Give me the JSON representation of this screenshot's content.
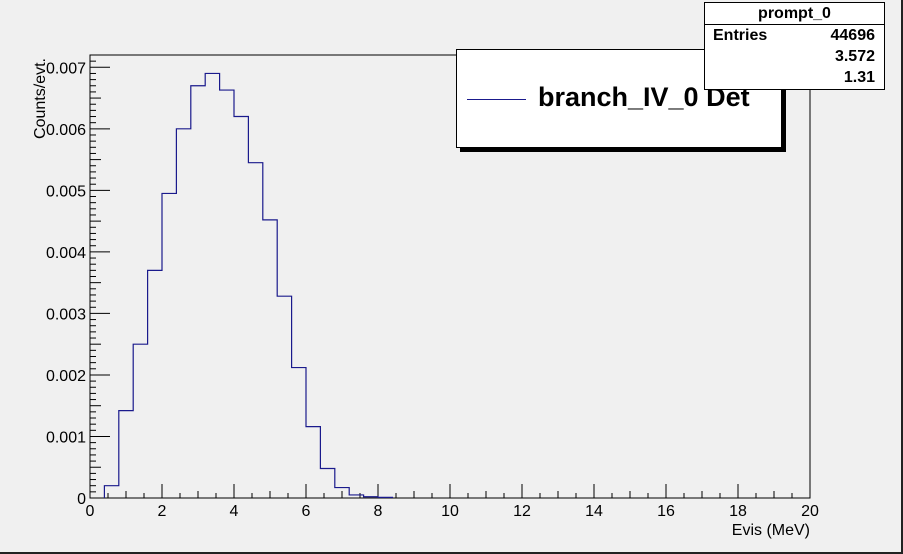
{
  "chart_data": {
    "type": "bar",
    "style": "step-histogram",
    "xlabel": "Evis (MeV)",
    "ylabel": "Counts/evt.",
    "xlim": [
      0,
      20
    ],
    "ylim": [
      0,
      0.0072
    ],
    "x_ticks": [
      "0",
      "2",
      "4",
      "6",
      "8",
      "10",
      "12",
      "14",
      "16",
      "18",
      "20"
    ],
    "y_ticks": [
      "0",
      "0.001",
      "0.002",
      "0.003",
      "0.004",
      "0.005",
      "0.006",
      "0.007"
    ],
    "bin_width": 0.4,
    "x": [
      0.4,
      0.8,
      1.2,
      1.6,
      2.0,
      2.4,
      2.8,
      3.2,
      3.6,
      4.0,
      4.4,
      4.8,
      5.2,
      5.6,
      6.0,
      6.4,
      6.8,
      7.2,
      7.6,
      8.0
    ],
    "values": [
      0.0002,
      0.00142,
      0.0025,
      0.0037,
      0.00495,
      0.006,
      0.0067,
      0.0069,
      0.00663,
      0.0062,
      0.00545,
      0.00452,
      0.00328,
      0.00212,
      0.00116,
      0.00048,
      0.00017,
      5e-05,
      2e-05,
      1e-05
    ],
    "series_color": "#1a1a8c",
    "grid": false,
    "legend": {
      "position": "top-right",
      "entries": [
        "branch_IV_0 Det"
      ]
    }
  },
  "stats_box": {
    "title": "prompt_0",
    "rows": [
      {
        "label": "Entries",
        "value": "44696"
      },
      {
        "label": "",
        "value": "3.572"
      },
      {
        "label": "",
        "value": "1.31"
      }
    ]
  }
}
